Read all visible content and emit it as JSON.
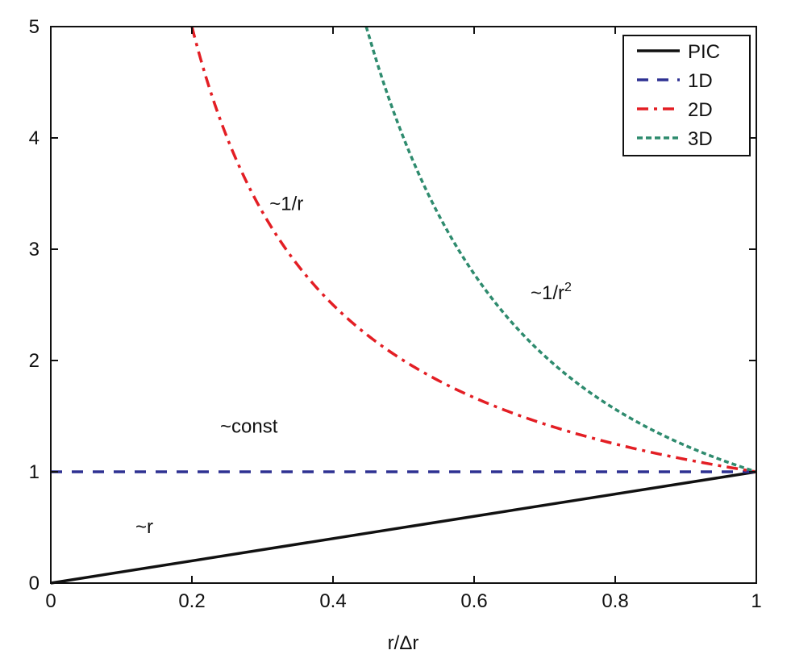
{
  "chart_data": {
    "type": "line",
    "title": "",
    "xlabel": "r/Δr",
    "ylabel": "",
    "xlim": [
      0,
      1
    ],
    "ylim": [
      0,
      5
    ],
    "xticks": [
      "0",
      "0.2",
      "0.4",
      "0.6",
      "0.8",
      "1"
    ],
    "yticks": [
      "0",
      "1",
      "2",
      "3",
      "4",
      "5"
    ],
    "grid": false,
    "legend_position": "top-right",
    "series": [
      {
        "name": "PIC",
        "formula": "r",
        "style": "solid",
        "color": "#111111",
        "x": [
          0,
          1
        ],
        "y": [
          0,
          1
        ]
      },
      {
        "name": "1D",
        "formula": "const",
        "style": "dashed",
        "color": "#2e3192",
        "x": [
          0,
          1
        ],
        "y": [
          1,
          1
        ]
      },
      {
        "name": "2D",
        "formula": "1/r",
        "style": "dashdot",
        "color": "#e31e24",
        "x_start": 0.2,
        "x_end": 1
      },
      {
        "name": "3D",
        "formula": "1/r^2",
        "style": "dotted",
        "color": "#2e8b6e",
        "x_start": 0.447,
        "x_end": 1
      }
    ],
    "annotations": [
      {
        "text": "~1/r",
        "x": 0.31,
        "y": 3.35
      },
      {
        "text": "~1/r",
        "sup": "2",
        "x": 0.68,
        "y": 2.55
      },
      {
        "text": "~const",
        "x": 0.24,
        "y": 1.35
      },
      {
        "text": "~r",
        "x": 0.12,
        "y": 0.45
      }
    ]
  }
}
